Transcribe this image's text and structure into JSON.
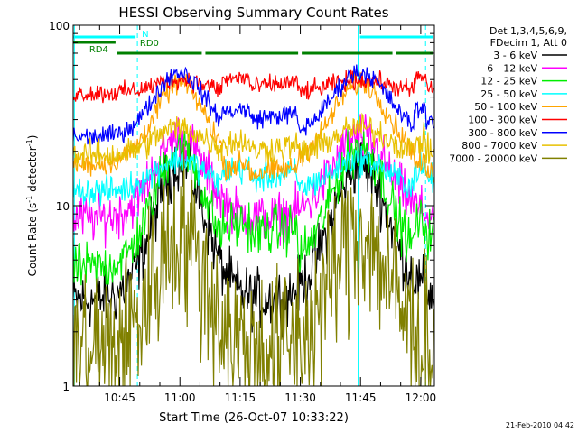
{
  "chart_data": {
    "type": "line",
    "title": "HESSI Observing Summary Count Rates",
    "xlabel": "Start Time (26-Oct-07 10:33:22)",
    "ylabel": "Count Rate (s⁻¹ detector⁻¹)",
    "ylabel_main": "Count Rate (s",
    "ylabel_mid": " detector",
    "ylabel_end": ")",
    "ylabel_sup": "-1",
    "y_scale": "log",
    "ylim": [
      1,
      100
    ],
    "xlim_minutes": [
      0,
      90
    ],
    "x_ticks": [
      {
        "minute": 11.6,
        "label": "10:45"
      },
      {
        "minute": 26.6,
        "label": "11:00"
      },
      {
        "minute": 41.6,
        "label": "11:15"
      },
      {
        "minute": 56.6,
        "label": "11:30"
      },
      {
        "minute": 71.6,
        "label": "11:45"
      },
      {
        "minute": 86.6,
        "label": "12:00"
      }
    ],
    "y_ticks": [
      {
        "value": 1,
        "label": "1"
      },
      {
        "value": 10,
        "label": "10"
      },
      {
        "value": 100,
        "label": "100"
      }
    ],
    "legend_header": [
      "Det 1,3,4,5,6,9,",
      "FDecim 1, Att 0"
    ],
    "legend_placement": "right",
    "series": [
      {
        "name": "3 - 6 keV",
        "color": "#000000",
        "day": 3.0,
        "peak": 17,
        "noise": 0.12,
        "night": null
      },
      {
        "name": "6 - 12 keV",
        "color": "#ff00ff",
        "day": 8.5,
        "peak": 24,
        "noise": 0.1,
        "night": null
      },
      {
        "name": "12 - 25 keV",
        "color": "#00ee00",
        "day": 4.5,
        "peak": 21,
        "noise": 0.1,
        "night": 7.0
      },
      {
        "name": "25 - 50 keV",
        "color": "#00ffff",
        "day": 12,
        "peak": 18,
        "noise": 0.06,
        "night": 14
      },
      {
        "name": "50 - 100 keV",
        "color": "#ffa500",
        "day": 17,
        "peak": 48,
        "noise": 0.05,
        "night": 15
      },
      {
        "name": "100 - 300 keV",
        "color": "#ff0000",
        "day": 42,
        "peak": 50,
        "noise": 0.04,
        "night": 45
      },
      {
        "name": "300 - 800 keV",
        "color": "#0000ff",
        "day": 24,
        "peak": 55,
        "noise": 0.04,
        "night": 30
      },
      {
        "name": "800 - 7000 keV",
        "color": "#e8c000",
        "day": 19,
        "peak": 27,
        "noise": 0.06,
        "night": 20
      },
      {
        "name": "7000 - 20000 keV",
        "color": "#808000",
        "day": 1.6,
        "peak": 7,
        "noise": 0.35,
        "night": null
      }
    ],
    "flag_bars": [
      {
        "label": "N",
        "color": "#00ffff",
        "segments": [
          [
            0,
            16
          ],
          [
            71,
            90
          ]
        ],
        "level": 0
      },
      {
        "label": "RD0",
        "color": "#008000",
        "segments": [
          [
            0,
            11
          ]
        ],
        "level": 1
      },
      {
        "label": "RD4",
        "color": "#008000",
        "segments": [
          [
            11,
            32.5
          ],
          [
            32.5,
            56.5
          ],
          [
            56.5,
            80
          ],
          [
            80,
            90
          ]
        ],
        "level": 2
      }
    ],
    "event_lines": [
      {
        "minute": 0.3,
        "style": "solid"
      },
      {
        "minute": 16,
        "style": "dashed"
      },
      {
        "minute": 71,
        "style": "solid"
      },
      {
        "minute": 87.8,
        "style": "dashed"
      }
    ],
    "timestamp": "21-Feb-2010 04:42"
  }
}
